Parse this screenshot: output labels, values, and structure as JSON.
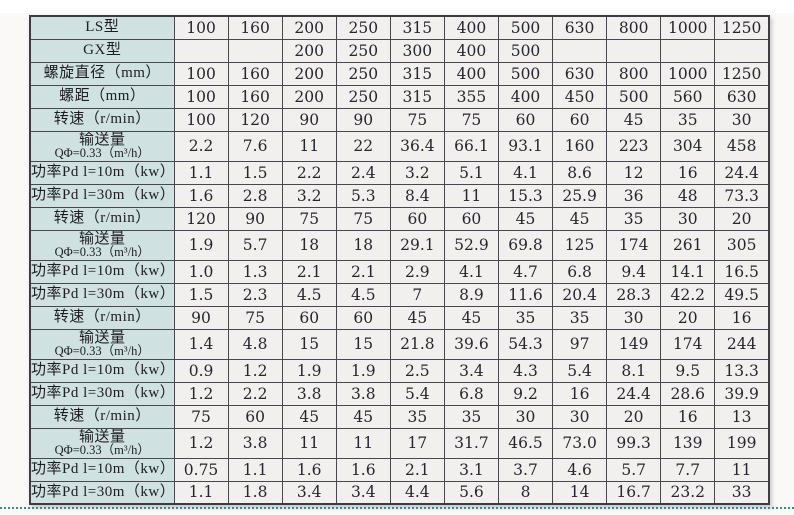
{
  "colors": {
    "header_bg": "#cfe1e0",
    "cell_bg": "#f1f0ee",
    "border": "#47474d",
    "dotted_rule": "#2d8f91",
    "page_bg": "#faf9f7"
  },
  "table": {
    "column_count": 12,
    "rows": [
      {
        "label": "LS型",
        "sublabel": "",
        "values": [
          "100",
          "160",
          "200",
          "250",
          "315",
          "400",
          "500",
          "630",
          "800",
          "1000",
          "1250"
        ]
      },
      {
        "label": "GX型",
        "sublabel": "",
        "values": [
          "",
          "",
          "200",
          "250",
          "300",
          "400",
          "500",
          "",
          "",
          "",
          ""
        ]
      },
      {
        "label": "螺旋直径（mm）",
        "sublabel": "",
        "values": [
          "100",
          "160",
          "200",
          "250",
          "315",
          "400",
          "500",
          "630",
          "800",
          "1000",
          "1250"
        ]
      },
      {
        "label": "螺距（mm）",
        "sublabel": "",
        "values": [
          "100",
          "160",
          "200",
          "250",
          "315",
          "355",
          "400",
          "450",
          "500",
          "560",
          "630"
        ]
      },
      {
        "label": "转速（r/min）",
        "sublabel": "",
        "values": [
          "100",
          "120",
          "90",
          "90",
          "75",
          "75",
          "60",
          "60",
          "45",
          "35",
          "30"
        ]
      },
      {
        "label": "输送量",
        "sublabel": "QΦ=0.33（m³/h）",
        "values": [
          "2.2",
          "7.6",
          "11",
          "22",
          "36.4",
          "66.1",
          "93.1",
          "160",
          "223",
          "304",
          "458"
        ]
      },
      {
        "label": "功率Pd l=10m（kw）",
        "sublabel": "",
        "values": [
          "1.1",
          "1.5",
          "2.2",
          "2.4",
          "3.2",
          "5.1",
          "4.1",
          "8.6",
          "12",
          "16",
          "24.4"
        ]
      },
      {
        "label": "功率Pd l=30m（kw）",
        "sublabel": "",
        "values": [
          "1.6",
          "2.8",
          "3.2",
          "5.3",
          "8.4",
          "11",
          "15.3",
          "25.9",
          "36",
          "48",
          "73.3"
        ]
      },
      {
        "label": "转速（r/min）",
        "sublabel": "",
        "values": [
          "120",
          "90",
          "75",
          "75",
          "60",
          "60",
          "45",
          "45",
          "35",
          "30",
          "20"
        ]
      },
      {
        "label": "输送量",
        "sublabel": "QΦ=0.33（m³/h）",
        "values": [
          "1.9",
          "5.7",
          "18",
          "18",
          "29.1",
          "52.9",
          "69.8",
          "125",
          "174",
          "261",
          "305"
        ]
      },
      {
        "label": "功率Pd l=10m（kw）",
        "sublabel": "",
        "values": [
          "1.0",
          "1.3",
          "2.1",
          "2.1",
          "2.9",
          "4.1",
          "4.7",
          "6.8",
          "9.4",
          "14.1",
          "16.5"
        ]
      },
      {
        "label": "功率Pd l=30m（kw）",
        "sublabel": "",
        "values": [
          "1.5",
          "2.3",
          "4.5",
          "4.5",
          "7",
          "8.9",
          "11.6",
          "20.4",
          "28.3",
          "42.2",
          "49.5"
        ]
      },
      {
        "label": "转速（r/min）",
        "sublabel": "",
        "values": [
          "90",
          "75",
          "60",
          "60",
          "45",
          "45",
          "35",
          "35",
          "30",
          "20",
          "16"
        ]
      },
      {
        "label": "输送量",
        "sublabel": "QΦ=0.33（m³/h）",
        "values": [
          "1.4",
          "4.8",
          "15",
          "15",
          "21.8",
          "39.6",
          "54.3",
          "97",
          "149",
          "174",
          "244"
        ]
      },
      {
        "label": "功率Pd l=10m（kw）",
        "sublabel": "",
        "values": [
          "0.9",
          "1.2",
          "1.9",
          "1.9",
          "2.5",
          "3.4",
          "4.3",
          "5.4",
          "8.1",
          "9.5",
          "13.3"
        ]
      },
      {
        "label": "功率Pd l=30m（kw）",
        "sublabel": "",
        "values": [
          "1.2",
          "2.2",
          "3.8",
          "3.8",
          "5.4",
          "6.8",
          "9.2",
          "16",
          "24.4",
          "28.6",
          "39.9"
        ]
      },
      {
        "label": "转速（r/min）",
        "sublabel": "",
        "values": [
          "75",
          "60",
          "45",
          "45",
          "35",
          "35",
          "30",
          "30",
          "20",
          "16",
          "13"
        ]
      },
      {
        "label": "输送量",
        "sublabel": "QΦ=0.33（m³/h）",
        "values": [
          "1.2",
          "3.8",
          "11",
          "11",
          "17",
          "31.7",
          "46.5",
          "73.0",
          "99.3",
          "139",
          "199"
        ]
      },
      {
        "label": "功率Pd l=10m（kw）",
        "sublabel": "",
        "values": [
          "0.75",
          "1.1",
          "1.6",
          "1.6",
          "2.1",
          "3.1",
          "3.7",
          "4.6",
          "5.7",
          "7.7",
          "11"
        ]
      },
      {
        "label": "功率Pd l=30m（kw）",
        "sublabel": "",
        "values": [
          "1.1",
          "1.8",
          "3.4",
          "3.4",
          "4.4",
          "5.6",
          "8",
          "14",
          "16.7",
          "23.2",
          "33"
        ]
      }
    ]
  }
}
